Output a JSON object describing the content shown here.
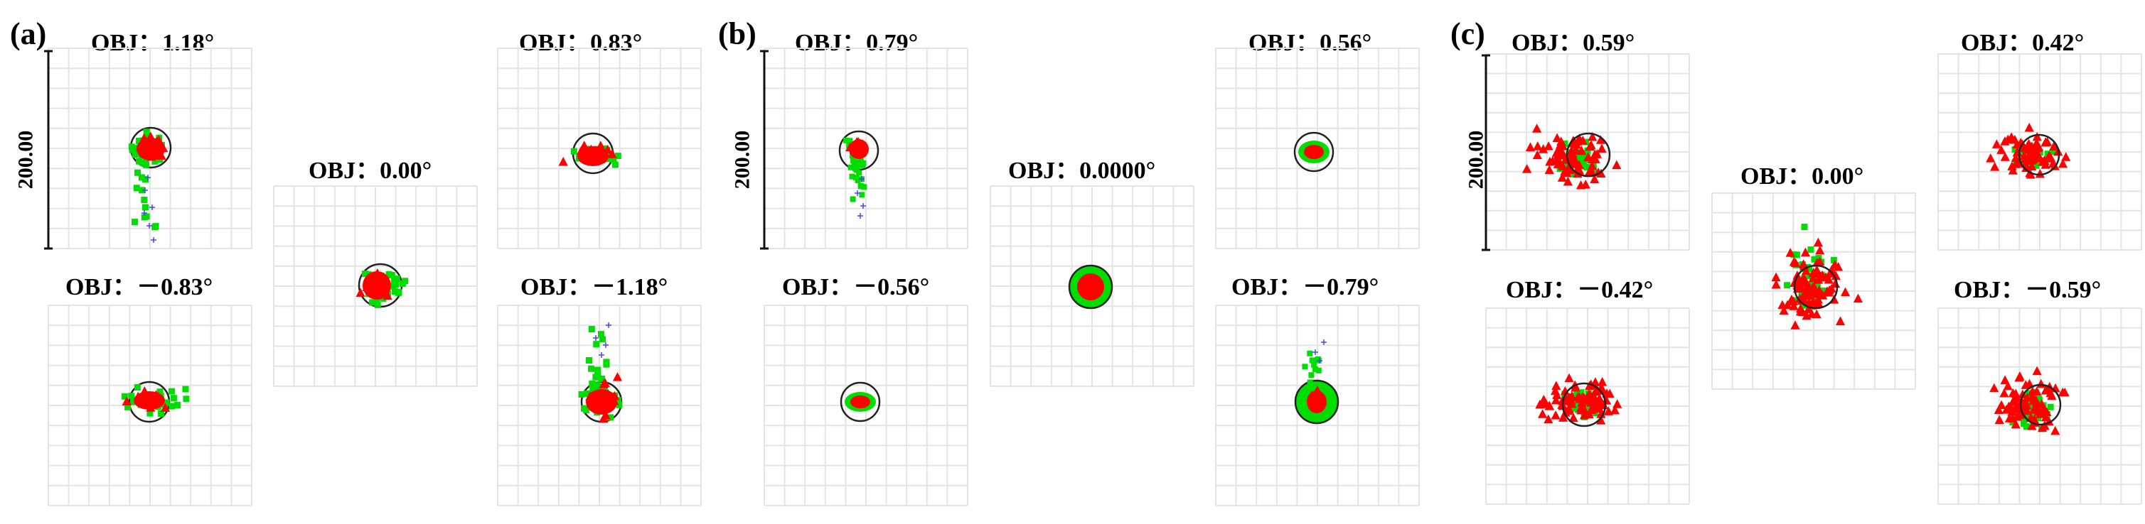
{
  "panels": [
    {
      "letter": "(a)",
      "scale_label": "200.00",
      "diagrams": [
        {
          "label": "OBJ：1.18°"
        },
        {
          "label": "OBJ：0.00°"
        },
        {
          "label": "OBJ：0.83°"
        },
        {
          "label": "OBJ：－0.83°"
        },
        {
          "label": "OBJ：－1.18°"
        }
      ]
    },
    {
      "letter": "(b)",
      "scale_label": "200.00",
      "diagrams": [
        {
          "label": "OBJ：0.79°"
        },
        {
          "label": "OBJ：0.0000°"
        },
        {
          "label": "OBJ：0.56°"
        },
        {
          "label": "OBJ：－0.56°"
        },
        {
          "label": "OBJ：－0.79°"
        }
      ]
    },
    {
      "letter": "(c)",
      "scale_label": "200.00",
      "diagrams": [
        {
          "label": "OBJ：0.59°"
        },
        {
          "label": "OBJ：0.00°"
        },
        {
          "label": "OBJ：0.42°"
        },
        {
          "label": "OBJ：－0.42°"
        },
        {
          "label": "OBJ：－0.59°"
        }
      ]
    }
  ],
  "colors": {
    "grid": "#e4e4e4",
    "airy_disk": "#222222",
    "wavelength_1": "#ff0000",
    "wavelength_2": "#00dd00",
    "wavelength_3": "#4444ff"
  }
}
